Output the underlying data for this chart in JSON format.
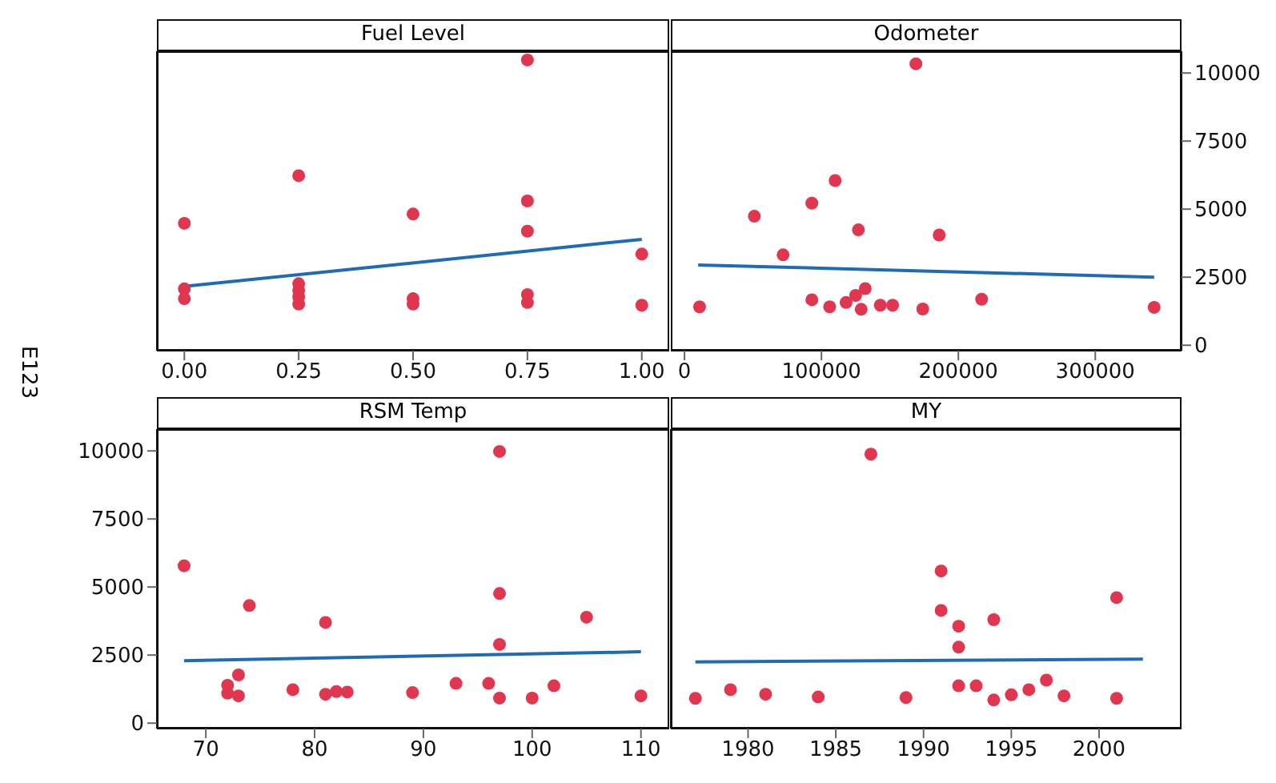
{
  "chart_data": [
    {
      "type": "scatter",
      "title": "Fuel Level",
      "xlim": [
        -0.06,
        1.06
      ],
      "xticks": [
        {
          "value": 0,
          "label": "0.00"
        },
        {
          "value": 0.25,
          "label": "0.25"
        },
        {
          "value": 0.5,
          "label": "0.50"
        },
        {
          "value": 0.75,
          "label": "0.75"
        },
        {
          "value": 1,
          "label": "1.00"
        }
      ],
      "ylim": [
        -200,
        10800
      ],
      "yticks": [
        0,
        2500,
        5000,
        7500,
        10000
      ],
      "tick_labels": "x",
      "series": [
        {
          "marker": "circle",
          "color": "#e0364f",
          "x": [
            0,
            0,
            0,
            0.25,
            0.25,
            0.25,
            0.25,
            0.25,
            0.5,
            0.5,
            0.5,
            0.75,
            0.75,
            0.75,
            0.75,
            0.75,
            1,
            1
          ],
          "values": [
            4480,
            2070,
            1710,
            6230,
            2260,
            2020,
            1770,
            1510,
            4820,
            1710,
            1510,
            10480,
            5300,
            4190,
            1860,
            1570,
            3350,
            1470
          ]
        },
        {
          "type": "line",
          "color": "#1f6cb5",
          "x": [
            0,
            1
          ],
          "values": [
            2160,
            3890
          ]
        }
      ]
    },
    {
      "type": "scatter",
      "title": "Odometer",
      "xlim": [
        -10000,
        363000
      ],
      "xticks": [
        0,
        100000,
        200000,
        300000
      ],
      "ylim": [
        -200,
        10800
      ],
      "yticks": [
        0,
        2500,
        5000,
        7500,
        10000
      ],
      "series": [
        {
          "marker": "circle",
          "color": "#e0364f",
          "x": [
            11000,
            51000,
            72000,
            93000,
            93000,
            106000,
            110000,
            118000,
            125000,
            127000,
            129000,
            132000,
            143000,
            152000,
            169000,
            174000,
            186000,
            217000,
            343000
          ],
          "values": [
            1410,
            4740,
            3320,
            5220,
            1670,
            1410,
            6050,
            1570,
            1830,
            4240,
            1320,
            2080,
            1470,
            1470,
            10340,
            1330,
            4050,
            1690,
            1390
          ]
        },
        {
          "type": "line",
          "color": "#1f6cb5",
          "x": [
            10000,
            343000
          ],
          "values": [
            2950,
            2500
          ]
        }
      ]
    },
    {
      "type": "scatter",
      "title": "RSM Temp",
      "ylabel": "E123",
      "xlim": [
        65.5,
        112.6
      ],
      "xticks": [
        70,
        80,
        90,
        100,
        110
      ],
      "ylim": [
        -200,
        10800
      ],
      "yticks": [
        0,
        2500,
        5000,
        7500,
        10000
      ],
      "series": [
        {
          "marker": "circle",
          "color": "#e0364f",
          "x": [
            68,
            72,
            72,
            73,
            73,
            74,
            78,
            81,
            81,
            82,
            83,
            89,
            93,
            96,
            97,
            97,
            97,
            97,
            100,
            102,
            105,
            110
          ],
          "values": [
            5780,
            1390,
            1100,
            1770,
            1000,
            4320,
            1230,
            3700,
            1060,
            1160,
            1140,
            1120,
            1460,
            1460,
            9980,
            4760,
            2890,
            920,
            920,
            1370,
            3890,
            1000
          ]
        },
        {
          "type": "line",
          "color": "#1f6cb5",
          "x": [
            68,
            110
          ],
          "values": [
            2290,
            2620
          ]
        }
      ]
    },
    {
      "type": "scatter",
      "title": "MY",
      "xlim": [
        1975.6,
        2004.7
      ],
      "xticks": [
        1980,
        1985,
        1990,
        1995,
        2000
      ],
      "ylim": [
        -200,
        10800
      ],
      "yticks": [
        0,
        2500,
        5000,
        7500,
        10000
      ],
      "tick_labels": "x",
      "series": [
        {
          "marker": "circle",
          "color": "#e0364f",
          "x": [
            1977,
            1979,
            1981,
            1984,
            1987,
            1989,
            1991,
            1991,
            1992,
            1992,
            1992,
            1993,
            1994,
            1994,
            1995,
            1996,
            1997,
            1998,
            2001,
            2001
          ],
          "values": [
            910,
            1230,
            1060,
            960,
            9880,
            940,
            5590,
            4140,
            3560,
            2790,
            1370,
            1370,
            850,
            3800,
            1040,
            1230,
            1580,
            1000,
            4610,
            910
          ]
        },
        {
          "type": "line",
          "color": "#1f6cb5",
          "x": [
            1977,
            2002.5
          ],
          "values": [
            2250,
            2350
          ]
        }
      ]
    }
  ]
}
